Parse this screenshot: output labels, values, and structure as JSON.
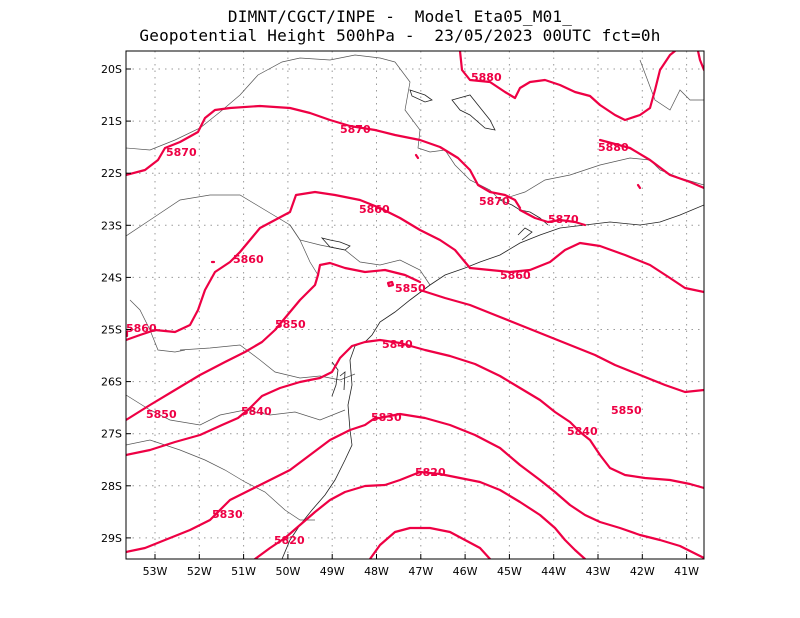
{
  "header": {
    "line1": "DIMNT/CGCT/INPE -  Model Eta05_M01_",
    "line2": "Geopotential Height 500hPa -  23/05/2023 00UTC fct=0h"
  },
  "map": {
    "lon_ticks": [
      "53W",
      "52W",
      "51W",
      "50W",
      "49W",
      "48W",
      "47W",
      "46W",
      "45W",
      "44W",
      "43W",
      "42W",
      "41W"
    ],
    "lat_ticks": [
      "20S",
      "21S",
      "22S",
      "23S",
      "24S",
      "25S",
      "26S",
      "27S",
      "28S",
      "29S"
    ],
    "contour_color": "#ee0044",
    "contour_labels": [
      {
        "text": "5880"
      },
      {
        "text": "5880"
      },
      {
        "text": "5870"
      },
      {
        "text": "5870"
      },
      {
        "text": "5870"
      },
      {
        "text": "5870"
      },
      {
        "text": "5860"
      },
      {
        "text": "5860"
      },
      {
        "text": "5860"
      },
      {
        "text": "5850"
      },
      {
        "text": "5860"
      },
      {
        "text": "5850"
      },
      {
        "text": "5840"
      },
      {
        "text": "5850"
      },
      {
        "text": "5840"
      },
      {
        "text": "5830"
      },
      {
        "text": "5850"
      },
      {
        "text": "5840"
      },
      {
        "text": "5820"
      },
      {
        "text": "5830"
      },
      {
        "text": "5820"
      }
    ]
  }
}
